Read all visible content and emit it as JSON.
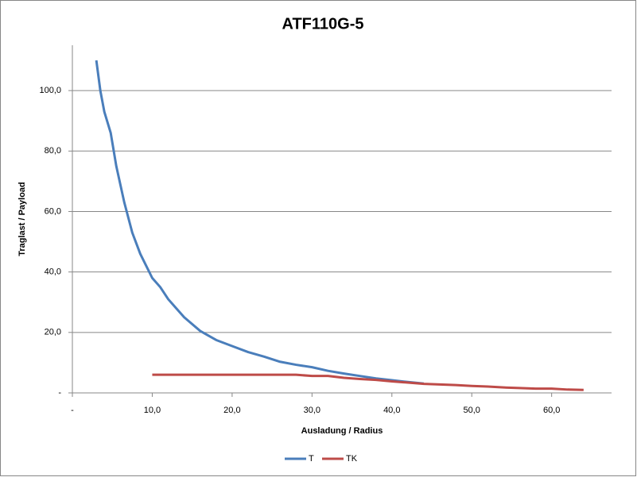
{
  "chart_data": {
    "type": "line",
    "title": "ATF110G-5",
    "x_label": "Ausladung / Radius",
    "y_label": "Traglast / Payload",
    "xlim": [
      0,
      67.5
    ],
    "ylim": [
      0,
      115
    ],
    "xticks": [
      {
        "value": 0,
        "label": "-"
      },
      {
        "value": 10,
        "label": "10,0"
      },
      {
        "value": 20,
        "label": "20,0"
      },
      {
        "value": 30,
        "label": "30,0"
      },
      {
        "value": 40,
        "label": "40,0"
      },
      {
        "value": 50,
        "label": "50,0"
      },
      {
        "value": 60,
        "label": "60,0"
      }
    ],
    "yticks": [
      {
        "value": 0,
        "label": "-"
      },
      {
        "value": 20,
        "label": "20,0"
      },
      {
        "value": 40,
        "label": "40,0"
      },
      {
        "value": 60,
        "label": "60,0"
      },
      {
        "value": 80,
        "label": "80,0"
      },
      {
        "value": 100,
        "label": "100,0"
      }
    ],
    "grid": true,
    "legend": "bottom",
    "series": [
      {
        "name": "T",
        "color": "#4a7ebb",
        "x": [
          3,
          3.5,
          4,
          4.8,
          5.5,
          6.5,
          7.5,
          8.5,
          10,
          11,
          12,
          13,
          14,
          16,
          18,
          20,
          22,
          24,
          26,
          28,
          30,
          32,
          34,
          36,
          38,
          40,
          42,
          44
        ],
        "values": [
          110,
          100,
          93,
          86,
          75,
          63,
          53,
          46,
          38,
          35,
          31,
          28,
          25,
          20.5,
          17.5,
          15.5,
          13.5,
          12,
          10.3,
          9.3,
          8.5,
          7.3,
          6.4,
          5.6,
          4.8,
          4.2,
          3.6,
          3.1
        ]
      },
      {
        "name": "TK",
        "color": "#be4b48",
        "x": [
          10,
          12,
          14,
          16,
          18,
          20,
          22,
          24,
          26,
          28,
          30,
          32,
          34,
          36,
          38,
          40,
          42,
          44,
          46,
          48,
          50,
          52,
          54,
          56,
          58,
          60,
          62,
          64
        ],
        "values": [
          6,
          6,
          6,
          6,
          6,
          6,
          6,
          6,
          6,
          6,
          5.6,
          5.6,
          5,
          4.6,
          4.3,
          3.8,
          3.4,
          3,
          2.8,
          2.6,
          2.3,
          2.1,
          1.8,
          1.6,
          1.4,
          1.4,
          1.1,
          1.0
        ]
      }
    ]
  }
}
